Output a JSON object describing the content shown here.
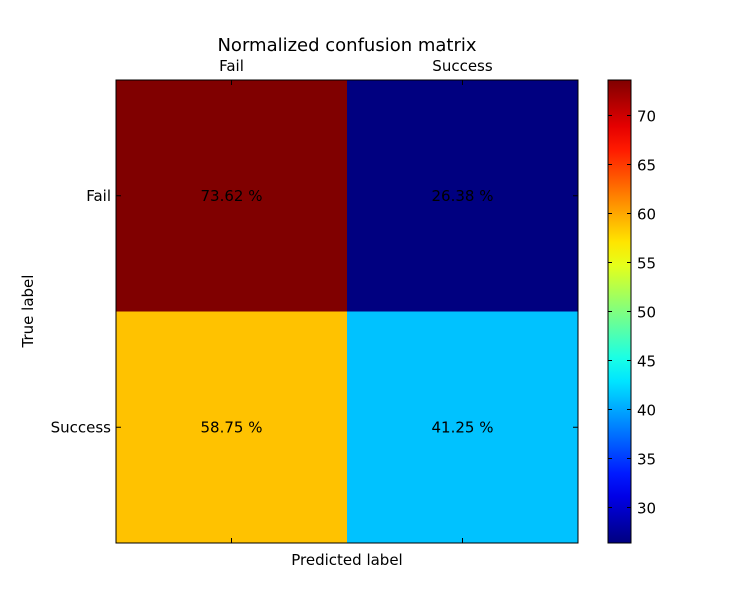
{
  "chart_data": {
    "type": "heatmap",
    "title": "Normalized confusion matrix",
    "xlabel": "Predicted label",
    "ylabel": "True label",
    "x_categories": [
      "Fail",
      "Success"
    ],
    "y_categories": [
      "Fail",
      "Success"
    ],
    "values": [
      [
        73.62,
        26.38
      ],
      [
        58.75,
        41.25
      ]
    ],
    "cell_labels": [
      [
        "73.62 %",
        "26.38 %"
      ],
      [
        "58.75 %",
        "41.25 %"
      ]
    ],
    "colormap": "jet",
    "colorbar": {
      "range": [
        26.38,
        73.62
      ],
      "ticks": [
        "30",
        "35",
        "40",
        "45",
        "50",
        "55",
        "60",
        "65",
        "70"
      ]
    },
    "x_ticks_position": "top"
  }
}
